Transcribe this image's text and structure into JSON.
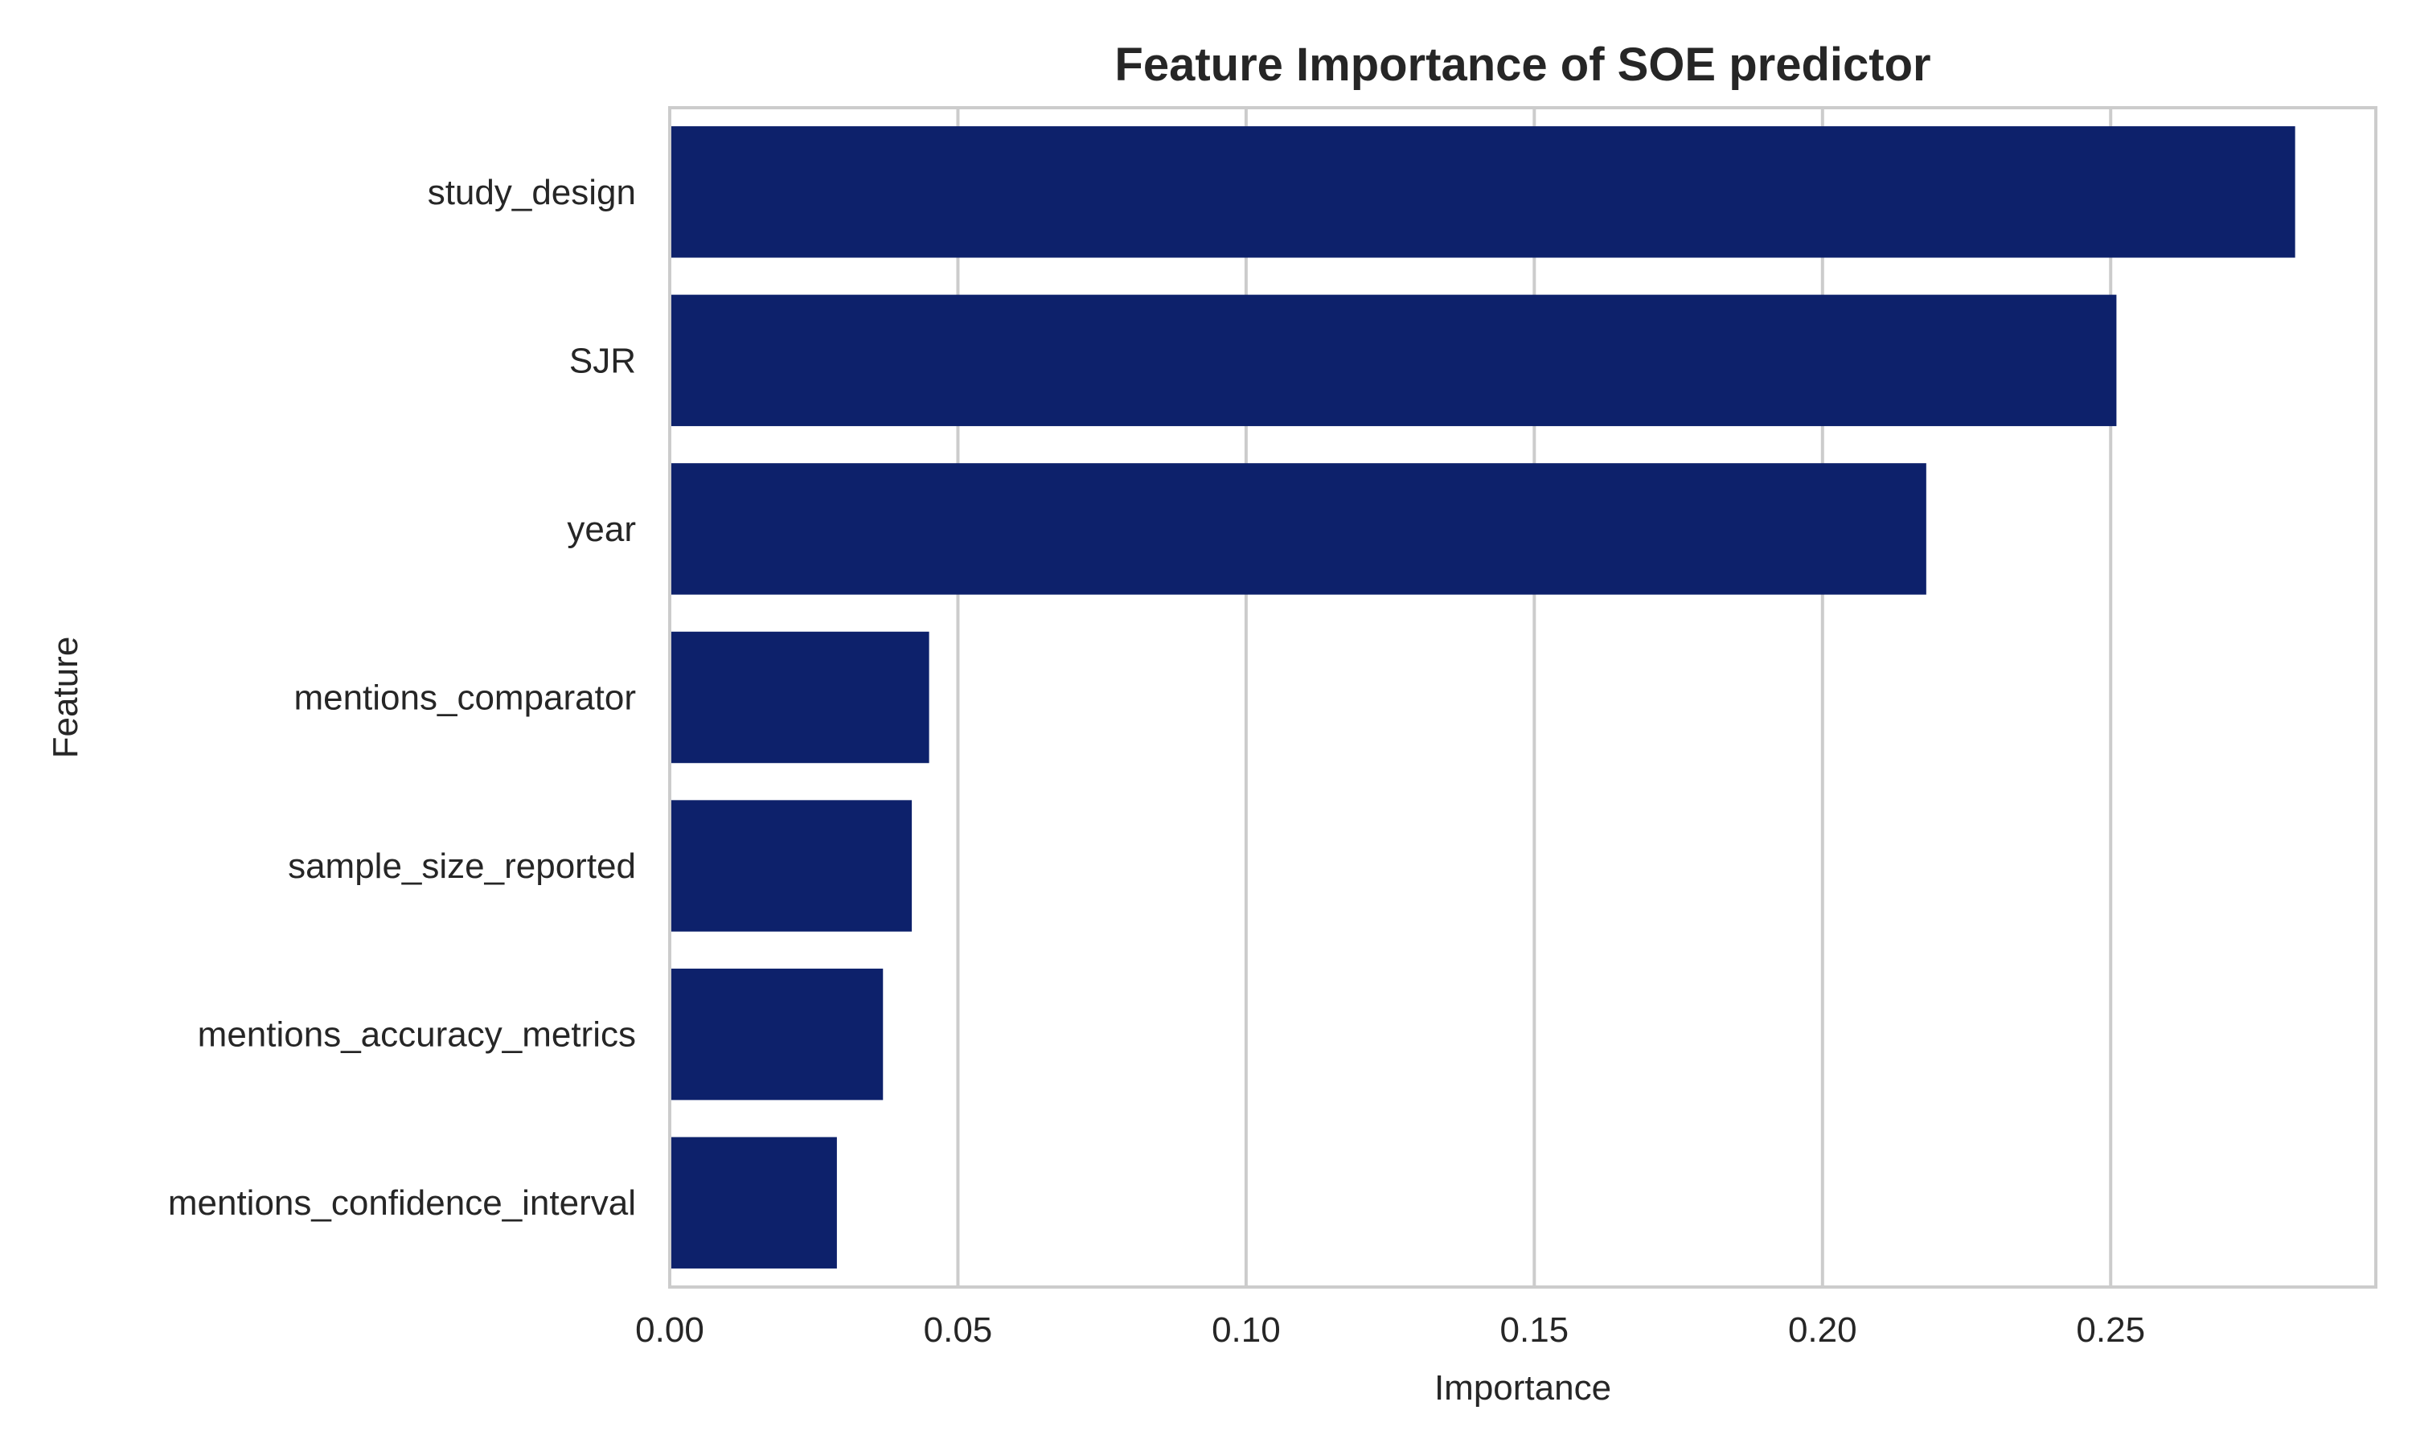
{
  "chart_data": {
    "type": "bar",
    "orientation": "horizontal",
    "title": "Feature Importance of SOE predictor",
    "xlabel": "Importance",
    "ylabel": "Feature",
    "categories": [
      "study_design",
      "SJR",
      "year",
      "mentions_comparator",
      "sample_size_reported",
      "mentions_accuracy_metrics",
      "mentions_confidence_interval"
    ],
    "values": [
      0.282,
      0.251,
      0.218,
      0.045,
      0.042,
      0.037,
      0.029
    ],
    "xlim": [
      0.0,
      0.296
    ],
    "xticks": [
      "0.00",
      "0.05",
      "0.10",
      "0.15",
      "0.20",
      "0.25"
    ],
    "xtick_values": [
      0.0,
      0.05,
      0.1,
      0.15,
      0.2,
      0.25
    ],
    "grid": "x-axis vertical lines",
    "bar_color": "#0d216b",
    "grid_color": "#cccccc",
    "text_color": "#262626"
  }
}
